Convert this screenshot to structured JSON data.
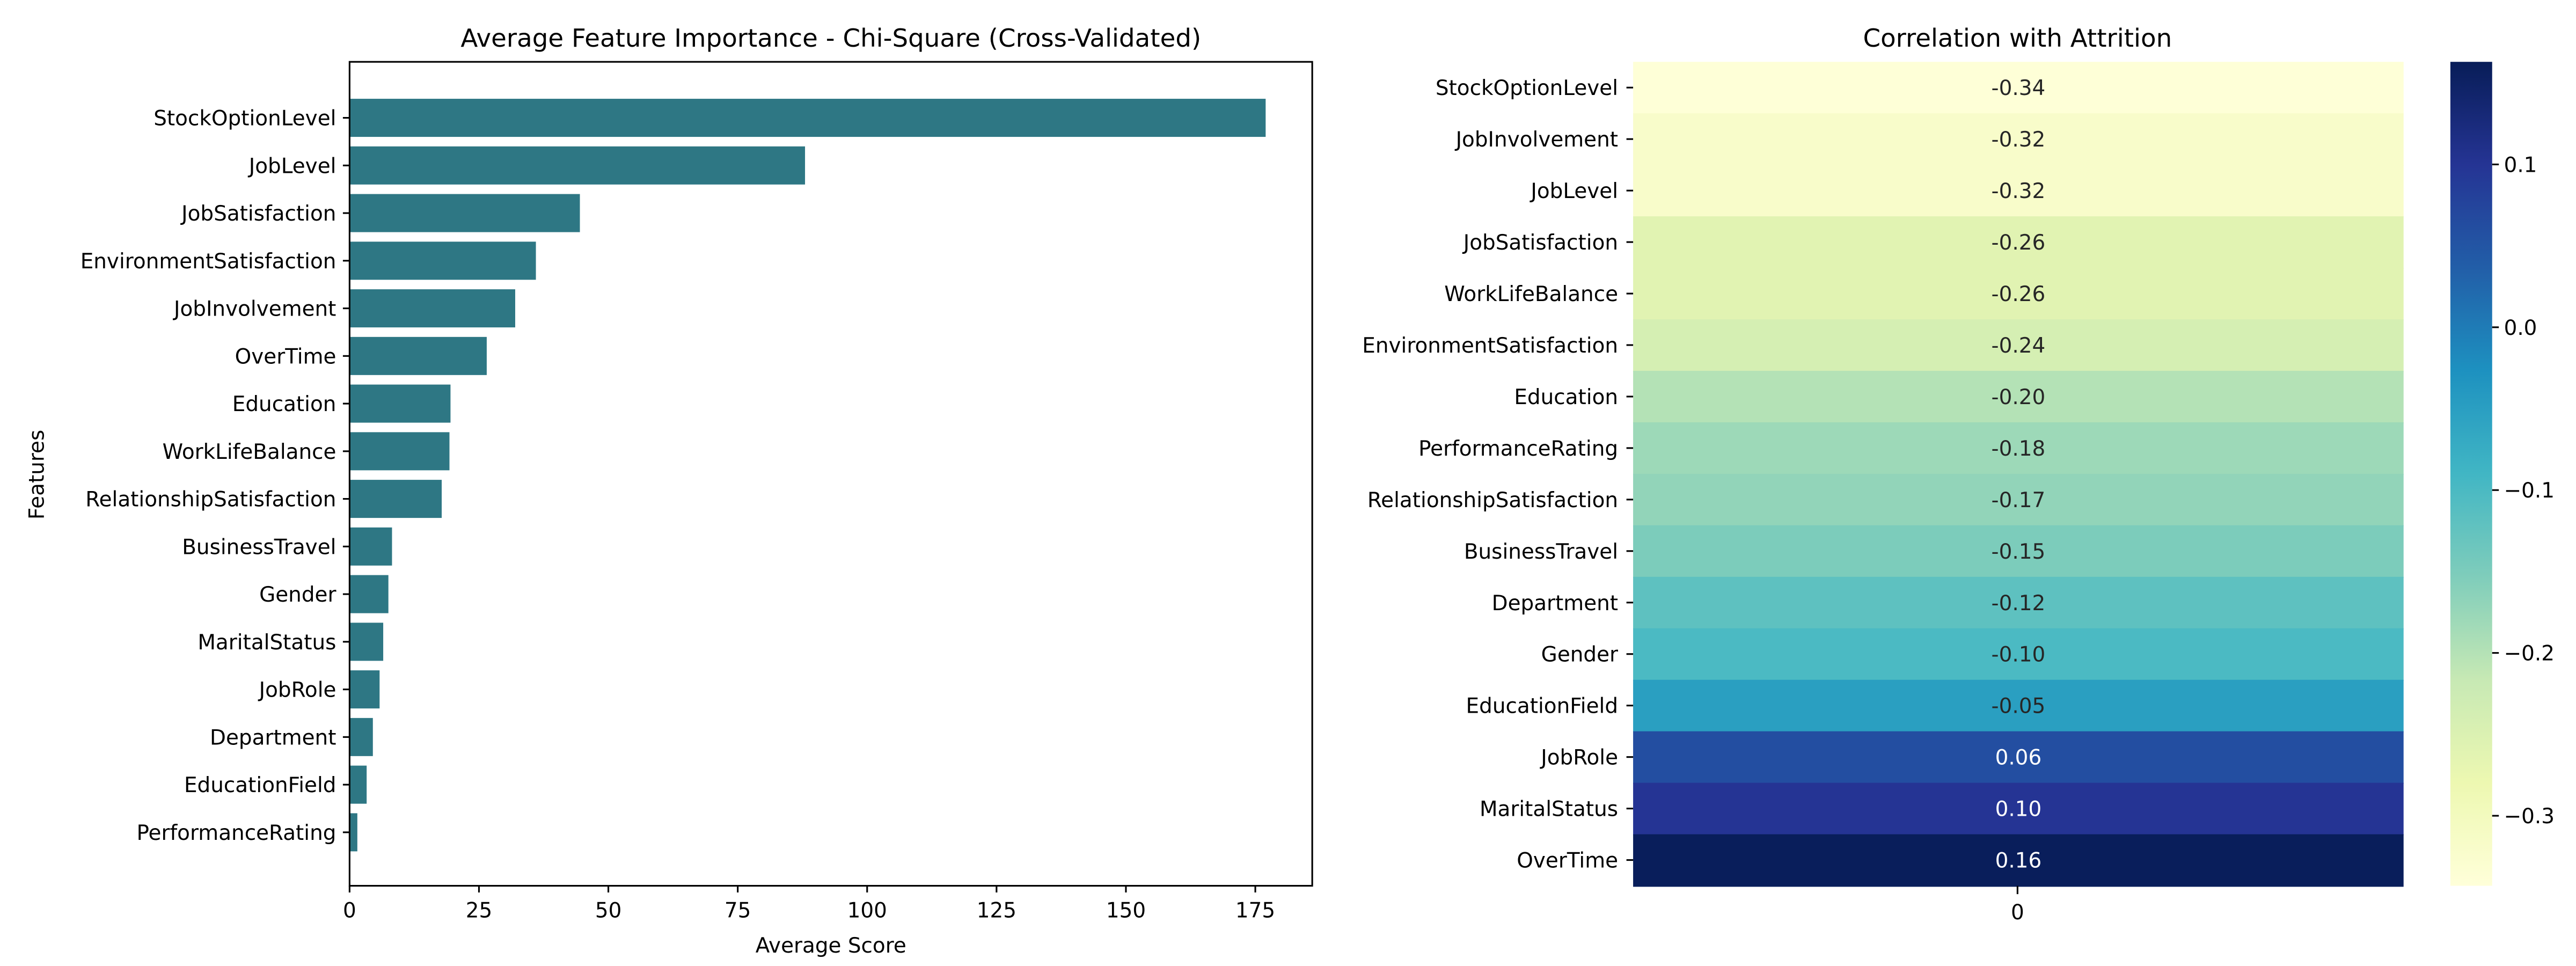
{
  "chart_data": [
    {
      "type": "bar",
      "orientation": "horizontal",
      "title": "Average Feature Importance - Chi-Square (Cross-Validated)",
      "xlabel": "Average Score",
      "ylabel": "Features",
      "xlim": [
        0,
        186
      ],
      "xticks": [
        0,
        25,
        50,
        75,
        100,
        125,
        150,
        175
      ],
      "bar_color": "#2e7784",
      "grid": false,
      "categories": [
        "StockOptionLevel",
        "JobLevel",
        "JobSatisfaction",
        "EnvironmentSatisfaction",
        "JobInvolvement",
        "OverTime",
        "Education",
        "WorkLifeBalance",
        "RelationshipSatisfaction",
        "BusinessTravel",
        "Gender",
        "MaritalStatus",
        "JobRole",
        "Department",
        "EducationField",
        "PerformanceRating"
      ],
      "values": [
        177,
        88,
        44.5,
        36,
        32,
        26.5,
        19.5,
        19.3,
        17.8,
        8.2,
        7.5,
        6.5,
        5.8,
        4.5,
        3.3,
        1.5
      ]
    },
    {
      "type": "heatmap",
      "title": "Correlation with Attrition",
      "xticks": [
        "0"
      ],
      "categories": [
        "StockOptionLevel",
        "JobInvolvement",
        "JobLevel",
        "JobSatisfaction",
        "WorkLifeBalance",
        "EnvironmentSatisfaction",
        "Education",
        "PerformanceRating",
        "RelationshipSatisfaction",
        "BusinessTravel",
        "Department",
        "Gender",
        "EducationField",
        "JobRole",
        "MaritalStatus",
        "OverTime"
      ],
      "values": [
        -0.34,
        -0.32,
        -0.32,
        -0.26,
        -0.26,
        -0.24,
        -0.2,
        -0.18,
        -0.17,
        -0.15,
        -0.12,
        -0.1,
        -0.05,
        0.06,
        0.1,
        0.16
      ],
      "value_labels": [
        "-0.34",
        "-0.32",
        "-0.32",
        "-0.26",
        "-0.26",
        "-0.24",
        "-0.20",
        "-0.18",
        "-0.17",
        "-0.15",
        "-0.12",
        "-0.10",
        "-0.05",
        "0.06",
        "0.10",
        "0.16"
      ],
      "colormap": "YlGnBu",
      "colorbar": {
        "vmin": -0.343,
        "vmax": 0.163,
        "ticks": [
          0.1,
          0.0,
          -0.1,
          -0.2,
          -0.3
        ],
        "tick_labels": [
          "0.1",
          "0.0",
          "−0.1",
          "−0.2",
          "−0.3"
        ]
      }
    }
  ]
}
